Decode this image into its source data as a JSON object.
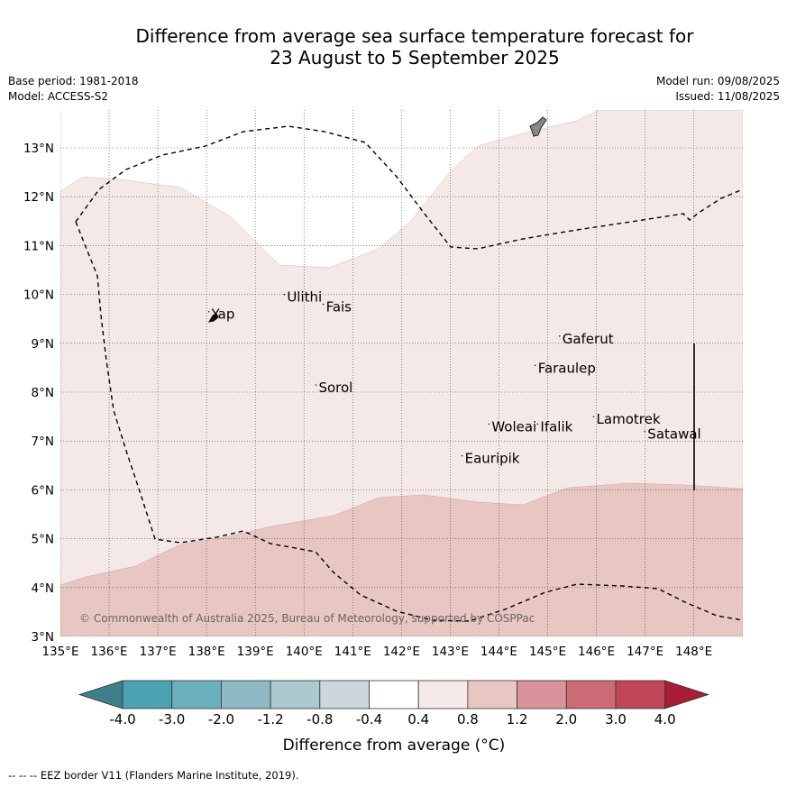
{
  "title": {
    "line1": "Difference from average sea surface temperature forecast for",
    "line2": "23 August to 5 September 2025"
  },
  "meta": {
    "base_period": "Base period: 1981-2018",
    "model": "Model: ACCESS-S2",
    "model_run": "Model run: 09/08/2025",
    "issued": "Issued: 11/08/2025"
  },
  "map": {
    "lon_range": [
      135,
      149
    ],
    "lat_range": [
      3,
      13.8
    ],
    "lon_ticks": [
      "135°E",
      "136°E",
      "137°E",
      "138°E",
      "139°E",
      "140°E",
      "141°E",
      "142°E",
      "143°E",
      "144°E",
      "145°E",
      "146°E",
      "147°E",
      "148°E"
    ],
    "lat_ticks": [
      "3°N",
      "4°N",
      "5°N",
      "6°N",
      "7°N",
      "8°N",
      "9°N",
      "10°N",
      "11°N",
      "12°N",
      "13°N"
    ],
    "fill_colors": {
      "band_0.4_0.8": "#f5e9e7",
      "band_0.8_1.2": "#e8c6c2",
      "band_neutral": "#ffffff"
    },
    "places": [
      {
        "name": "Yap",
        "lon": 138.1,
        "lat": 9.5
      },
      {
        "name": "Ulithi",
        "lon": 139.65,
        "lat": 9.85
      },
      {
        "name": "Fais",
        "lon": 140.45,
        "lat": 9.65
      },
      {
        "name": "Gaferut",
        "lon": 145.3,
        "lat": 9.0
      },
      {
        "name": "Faraulep",
        "lon": 144.8,
        "lat": 8.4
      },
      {
        "name": "Sorol",
        "lon": 140.3,
        "lat": 8.0
      },
      {
        "name": "Lamotrek",
        "lon": 146.0,
        "lat": 7.35
      },
      {
        "name": "Satawal",
        "lon": 147.05,
        "lat": 7.05
      },
      {
        "name": "Woleai",
        "lon": 143.85,
        "lat": 7.2
      },
      {
        "name": "Ifalik",
        "lon": 144.85,
        "lat": 7.2
      },
      {
        "name": "Eauripik",
        "lon": 143.3,
        "lat": 6.55
      }
    ],
    "copyright": "© Commonwealth of Australia 2025, Bureau of Meteorology, supported by COSPPac"
  },
  "colorbar": {
    "labels": [
      "-4.0",
      "-3.0",
      "-2.0",
      "-1.2",
      "-0.8",
      "-0.4",
      "0.4",
      "0.8",
      "1.2",
      "2.0",
      "3.0",
      "4.0"
    ],
    "colors": [
      "#3f7f8a",
      "#4aa3b3",
      "#6aafbc",
      "#8dbac4",
      "#abc9cf",
      "#cbd7db",
      "#ffffff",
      "#f5e9e7",
      "#e8c6c2",
      "#d9939a",
      "#cc6b76",
      "#c04556",
      "#a81d38"
    ],
    "title": "Difference from average (°C)"
  },
  "footer": "-- -- -- EEZ border V11 (Flanders Marine Institute, 2019)."
}
